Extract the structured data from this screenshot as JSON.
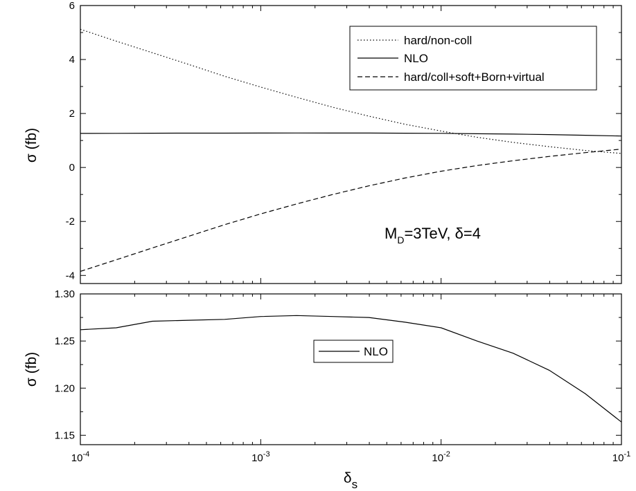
{
  "chart_data": [
    {
      "type": "line",
      "xscale": "log",
      "xlim": [
        0.0001,
        0.1
      ],
      "ylim": [
        -4.3,
        6
      ],
      "ylabel": "σ (fb)",
      "yticks": [
        "-4",
        "-2",
        "0",
        "2",
        "4",
        "6"
      ],
      "legend_position": "top-right",
      "annotation": {
        "main": "M",
        "sub": "D",
        "rest": "=3TeV, δ=4"
      },
      "series": [
        {
          "name": "hard/non-coll",
          "style": "dotted",
          "x": [
            0.0001,
            0.000158,
            0.000251,
            0.000398,
            0.000631,
            0.001,
            0.00158,
            0.00251,
            0.00398,
            0.00631,
            0.01,
            0.0158,
            0.0251,
            0.0398,
            0.0631,
            0.1
          ],
          "values": [
            5.12,
            4.68,
            4.25,
            3.82,
            3.38,
            2.98,
            2.6,
            2.23,
            1.9,
            1.6,
            1.35,
            1.12,
            0.93,
            0.77,
            0.63,
            0.52
          ]
        },
        {
          "name": "NLO",
          "style": "solid",
          "x": [
            0.0001,
            0.000158,
            0.000251,
            0.000398,
            0.000631,
            0.001,
            0.00158,
            0.00251,
            0.00398,
            0.00631,
            0.01,
            0.0158,
            0.0251,
            0.0398,
            0.0631,
            0.1
          ],
          "values": [
            1.262,
            1.264,
            1.271,
            1.272,
            1.273,
            1.276,
            1.277,
            1.276,
            1.275,
            1.27,
            1.264,
            1.25,
            1.237,
            1.219,
            1.194,
            1.164
          ]
        },
        {
          "name": "hard/coll+soft+Born+virtual",
          "style": "dashed",
          "x": [
            0.0001,
            0.000158,
            0.000251,
            0.000398,
            0.000631,
            0.001,
            0.00158,
            0.00251,
            0.00398,
            0.00631,
            0.01,
            0.0158,
            0.0251,
            0.0398,
            0.0631,
            0.1
          ],
          "values": [
            -3.85,
            -3.42,
            -2.98,
            -2.55,
            -2.12,
            -1.72,
            -1.35,
            -1.0,
            -0.68,
            -0.39,
            -0.14,
            0.07,
            0.25,
            0.41,
            0.55,
            0.68
          ]
        }
      ]
    },
    {
      "type": "line",
      "xscale": "log",
      "xlim": [
        0.0001,
        0.1
      ],
      "ylim": [
        1.14,
        1.3
      ],
      "ylabel": "σ (fb)",
      "xlabel": {
        "main": "δ",
        "sub": "s"
      },
      "yticks": [
        "1.15",
        "1.20",
        "1.25",
        "1.30"
      ],
      "xticks": [
        {
          "base": "10",
          "exp": "-4"
        },
        {
          "base": "10",
          "exp": "-3"
        },
        {
          "base": "10",
          "exp": "-2"
        },
        {
          "base": "10",
          "exp": "-1"
        }
      ],
      "legend_position": "center-left",
      "series": [
        {
          "name": "NLO",
          "style": "solid",
          "x": [
            0.0001,
            0.000158,
            0.000251,
            0.000398,
            0.000631,
            0.001,
            0.00158,
            0.00251,
            0.00398,
            0.00631,
            0.01,
            0.0158,
            0.0251,
            0.0398,
            0.0631,
            0.1
          ],
          "values": [
            1.262,
            1.264,
            1.271,
            1.272,
            1.273,
            1.276,
            1.277,
            1.276,
            1.275,
            1.27,
            1.264,
            1.25,
            1.237,
            1.219,
            1.194,
            1.164
          ]
        }
      ]
    }
  ]
}
